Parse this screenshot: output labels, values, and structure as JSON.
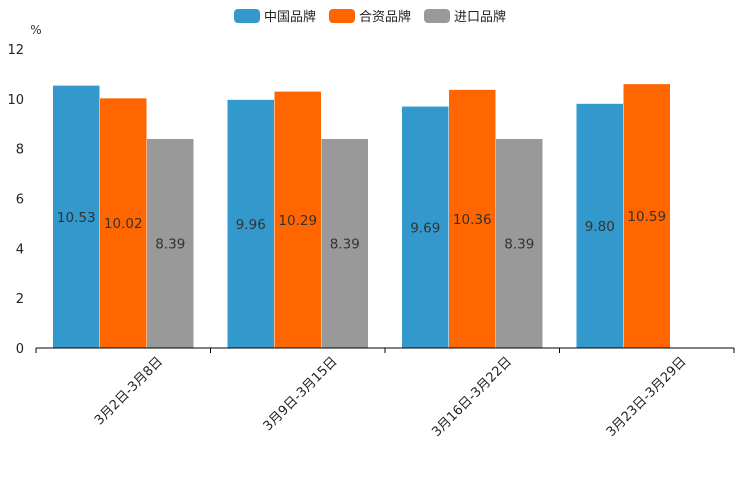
{
  "chart_data": {
    "type": "bar",
    "ylabel": "%",
    "ylim": [
      0,
      12
    ],
    "yticks": [
      0,
      2,
      4,
      6,
      8,
      10,
      12
    ],
    "categories": [
      "3月2日-3月8日",
      "3月9日-3月15日",
      "3月16日-3月22日",
      "3月23日-3月29日"
    ],
    "series": [
      {
        "name": "中国品牌",
        "color": "#3399cc",
        "values": [
          10.53,
          9.96,
          9.69,
          9.8
        ],
        "labels": [
          "10.53",
          "9.96",
          "9.69",
          "9.80"
        ]
      },
      {
        "name": "合资品牌",
        "color": "#ff6600",
        "values": [
          10.02,
          10.29,
          10.36,
          10.59
        ],
        "labels": [
          "10.02",
          "10.29",
          "10.36",
          "10.59"
        ]
      },
      {
        "name": "进口品牌",
        "color": "#999999",
        "values": [
          8.39,
          8.39,
          8.39,
          null
        ],
        "labels": [
          "8.39",
          "8.39",
          "8.39",
          ""
        ]
      }
    ],
    "legend_position": "top-center",
    "grid": false
  }
}
